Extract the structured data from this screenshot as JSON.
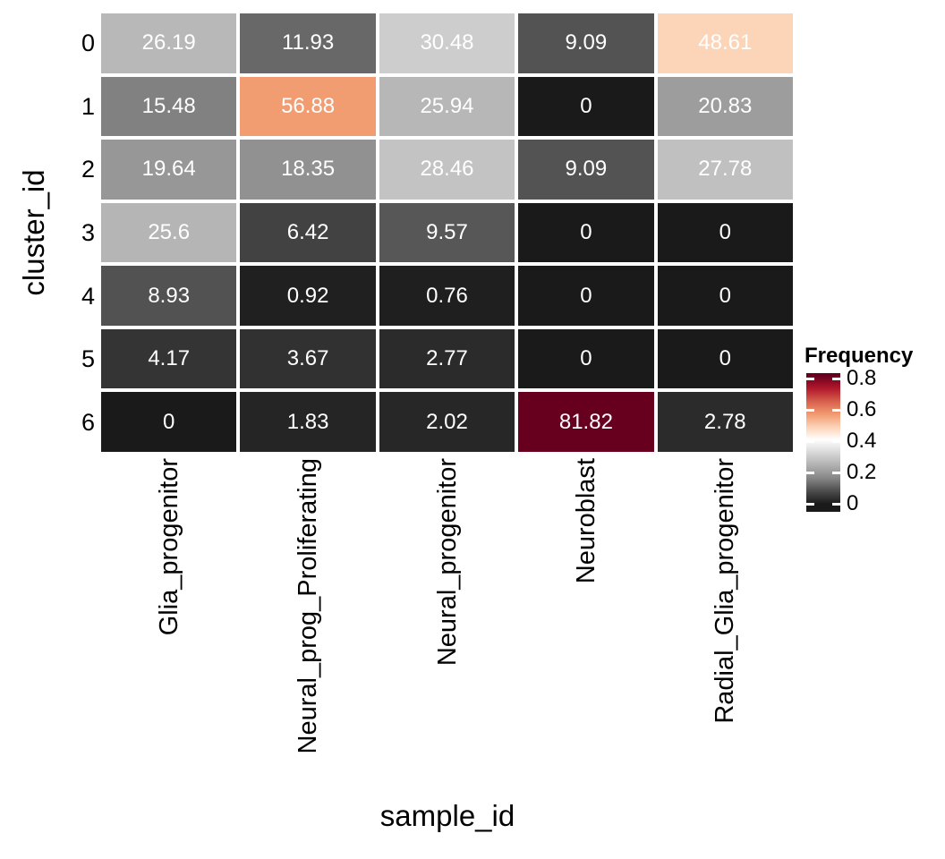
{
  "figure": {
    "background": "#ffffff"
  },
  "chart_data": {
    "type": "heatmap",
    "title": "",
    "xlabel": "sample_id",
    "ylabel": "cluster_id",
    "rows": [
      "0",
      "1",
      "2",
      "3",
      "4",
      "5",
      "6"
    ],
    "columns": [
      "Glia_progenitor",
      "Neural_prog_Proliferating",
      "Neural_progenitor",
      "Neuroblast",
      "Radial_Glia_progenitor"
    ],
    "values": [
      [
        26.19,
        11.93,
        30.48,
        9.09,
        48.61
      ],
      [
        15.48,
        56.88,
        25.94,
        0,
        20.83
      ],
      [
        19.64,
        18.35,
        28.46,
        9.09,
        27.78
      ],
      [
        25.6,
        6.42,
        9.57,
        0,
        0
      ],
      [
        8.93,
        0.92,
        0.76,
        0,
        0
      ],
      [
        4.17,
        3.67,
        2.77,
        0,
        0
      ],
      [
        0,
        1.83,
        2.02,
        81.82,
        2.78
      ]
    ],
    "values_are_percent_of_frequency": true,
    "cell_label_color": "#ffffff",
    "grid_line_color": "#ffffff",
    "axis_text_color": "#000000",
    "legend": {
      "title": "Frequency",
      "position": "right",
      "tick_values": [
        0,
        0.2,
        0.4,
        0.6,
        0.8
      ],
      "tick_labels": [
        "0",
        "0.2",
        "0.4",
        "0.6",
        "0.8"
      ],
      "domain": [
        0,
        0.8182
      ],
      "palette": [
        "#1a1a1a",
        "#4d4d4d",
        "#878787",
        "#b0b0b0",
        "#d8d8d8",
        "#ffffff",
        "#fcd2b5",
        "#f1996f",
        "#d6604d",
        "#b2182b",
        "#67001f"
      ]
    }
  }
}
